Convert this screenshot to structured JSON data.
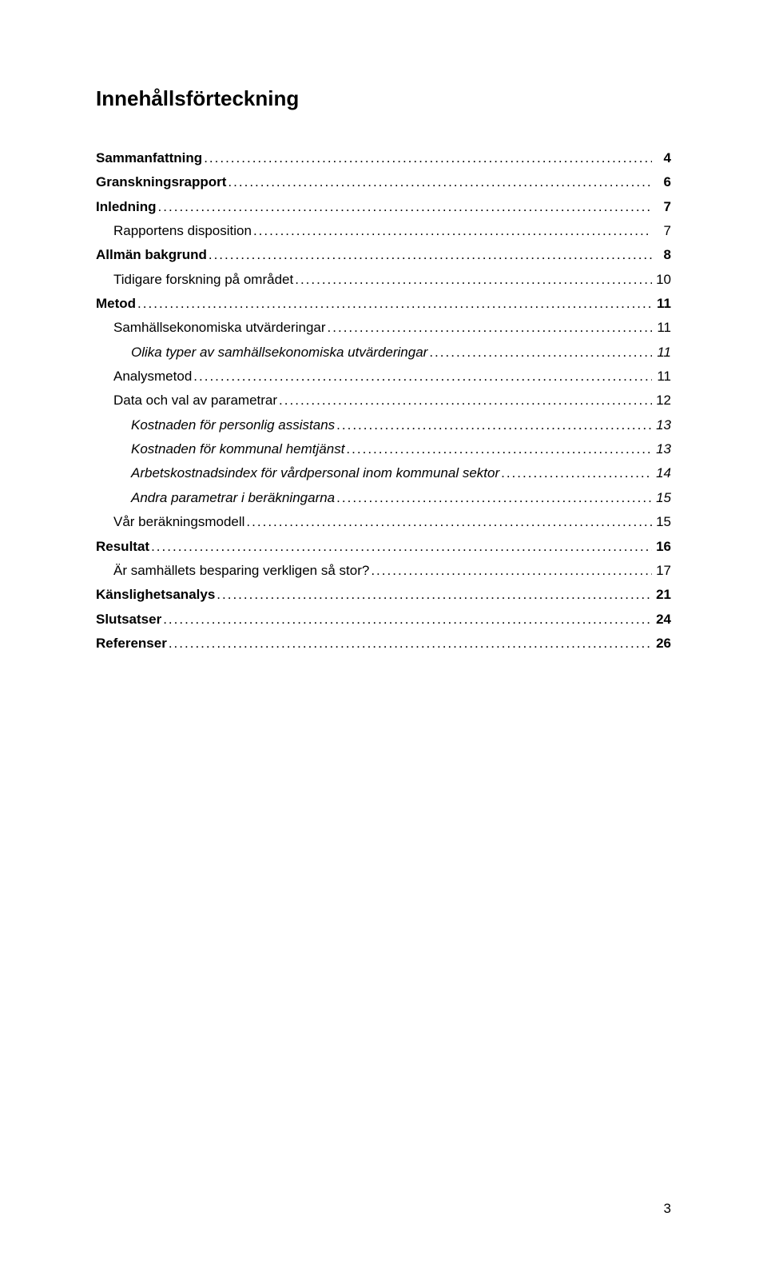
{
  "title": "Innehållsförteckning",
  "pageNumber": "3",
  "entries": [
    {
      "label": "Sammanfattning",
      "page": "4",
      "level": 0
    },
    {
      "label": "Granskningsrapport",
      "page": "6",
      "level": 0
    },
    {
      "label": "Inledning",
      "page": "7",
      "level": 0
    },
    {
      "label": "Rapportens disposition",
      "page": "7",
      "level": 1
    },
    {
      "label": "Allmän bakgrund",
      "page": "8",
      "level": 0
    },
    {
      "label": "Tidigare forskning på området",
      "page": "10",
      "level": 1
    },
    {
      "label": "Metod",
      "page": "11",
      "level": 0
    },
    {
      "label": "Samhällsekonomiska utvärderingar",
      "page": "11",
      "level": 1
    },
    {
      "label": "Olika typer av samhällsekonomiska utvärderingar",
      "page": "11",
      "level": 2
    },
    {
      "label": "Analysmetod",
      "page": "11",
      "level": 1
    },
    {
      "label": "Data och val av parametrar",
      "page": "12",
      "level": 1
    },
    {
      "label": "Kostnaden för personlig assistans",
      "page": "13",
      "level": 2
    },
    {
      "label": "Kostnaden för kommunal hemtjänst",
      "page": "13",
      "level": 2
    },
    {
      "label": "Arbetskostnadsindex för vårdpersonal inom kommunal sektor",
      "page": "14",
      "level": 2
    },
    {
      "label": "Andra parametrar i beräkningarna",
      "page": "15",
      "level": 2
    },
    {
      "label": "Vår beräkningsmodell",
      "page": "15",
      "level": 1
    },
    {
      "label": "Resultat",
      "page": "16",
      "level": 0
    },
    {
      "label": "Är samhällets besparing verkligen så stor?",
      "page": "17",
      "level": 1
    },
    {
      "label": "Känslighetsanalys",
      "page": "21",
      "level": 0
    },
    {
      "label": "Slutsatser",
      "page": "24",
      "level": 0
    },
    {
      "label": "Referenser",
      "page": "26",
      "level": 0
    }
  ]
}
